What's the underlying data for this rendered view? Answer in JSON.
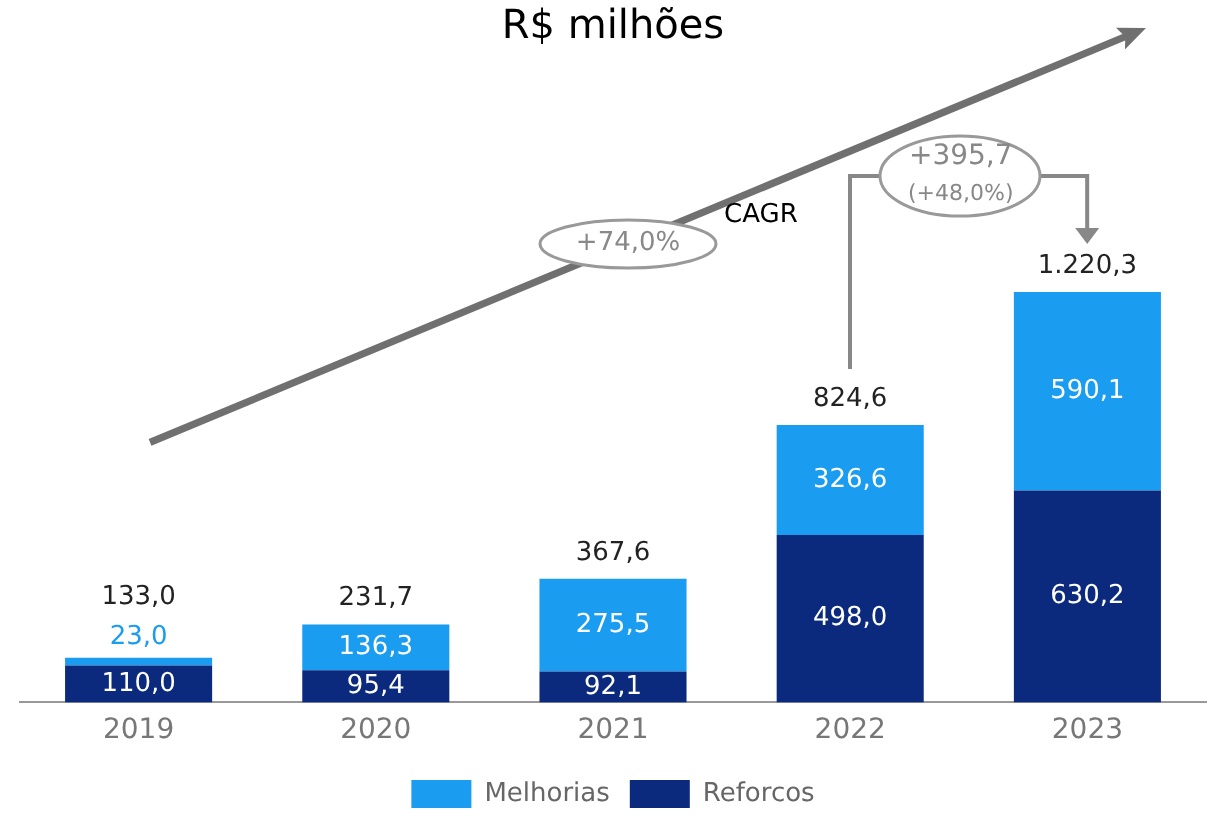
{
  "chart_data": {
    "type": "bar",
    "title": "R$ milhões",
    "categories": [
      "2019",
      "2020",
      "2021",
      "2022",
      "2023"
    ],
    "stacked": true,
    "tick_labels": "x",
    "grid": false,
    "legend": "bottom",
    "series": [
      {
        "name": "Reforcos",
        "color": "#0b2a7d",
        "values": [
          110.0,
          95.4,
          92.1,
          498.0,
          630.2
        ],
        "value_labels": [
          "110,0",
          "95,4",
          "92,1",
          "498,0",
          "630,2"
        ]
      },
      {
        "name": "Melhorias",
        "color": "#1a9cf0",
        "values": [
          23.0,
          136.3,
          275.5,
          326.6,
          590.1
        ],
        "value_labels": [
          "23,0",
          "136,3",
          "275,5",
          "326,6",
          "590,1"
        ]
      }
    ],
    "totals": [
      "133,0",
      "231,7",
      "367,6",
      "824,6",
      "1.220,3"
    ],
    "annotations": [
      "+74,0%",
      "CAGR",
      "+395,7",
      "(+48,0%)"
    ]
  }
}
